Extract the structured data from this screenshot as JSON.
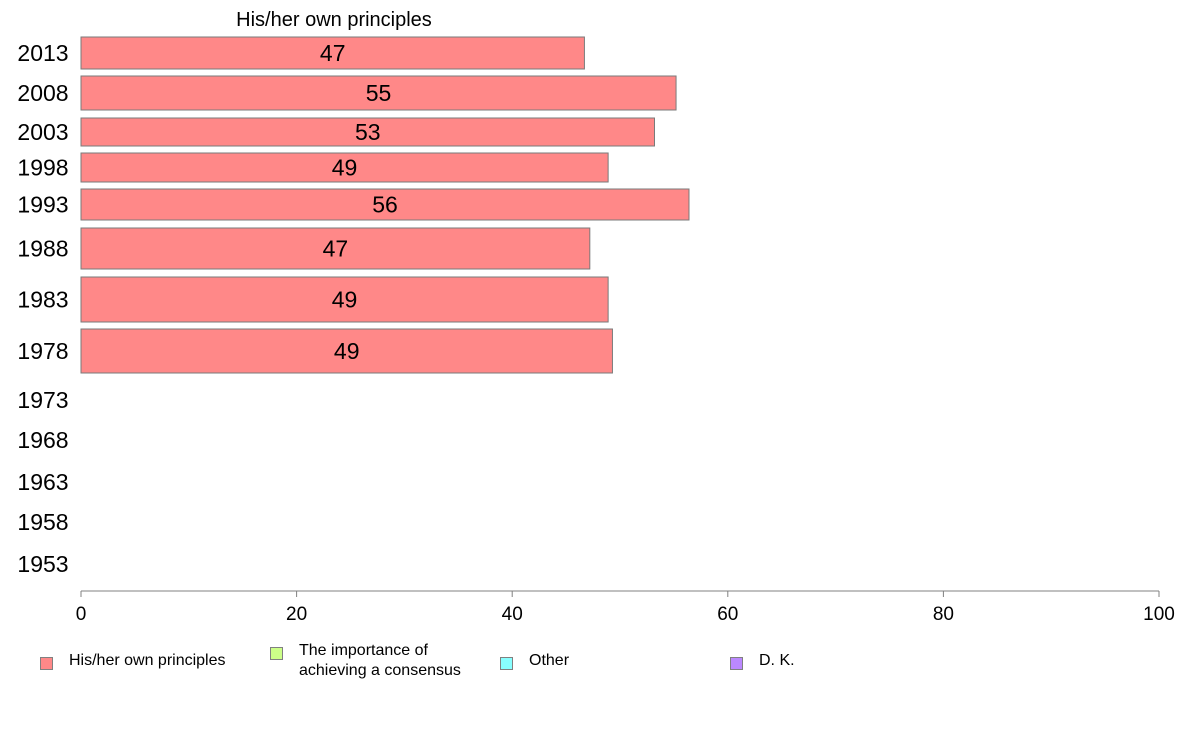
{
  "chart_data": {
    "type": "bar",
    "orientation": "horizontal",
    "title": "His/her own principles",
    "categories": [
      "2013",
      "2008",
      "2003",
      "1998",
      "1993",
      "1988",
      "1983",
      "1978",
      "1973",
      "1968",
      "1963",
      "1958",
      "1953"
    ],
    "series": [
      {
        "name": "His/her own principles",
        "color": "#ff8888",
        "values": [
          46.7,
          55.2,
          53.2,
          48.9,
          56.4,
          47.2,
          48.9,
          49.3,
          null,
          null,
          null,
          null,
          null
        ],
        "data_labels": [
          "47",
          "55",
          "53",
          "49",
          "56",
          "47",
          "49",
          "49",
          "",
          "",
          "",
          "",
          ""
        ]
      }
    ],
    "xlim": [
      0,
      100
    ],
    "x_ticks": [
      "0",
      "20",
      "40",
      "60",
      "80",
      "100"
    ],
    "grid": false,
    "legend_position": "bottom"
  },
  "legend": {
    "items": [
      {
        "label": "His/her own principles",
        "color": "#ff8888"
      },
      {
        "label": "The importance of achieving a consensus",
        "color": "#ccff88"
      },
      {
        "label": "Other",
        "color": "#88ffff"
      },
      {
        "label": "D. K.",
        "color": "#bb88ff"
      }
    ]
  }
}
